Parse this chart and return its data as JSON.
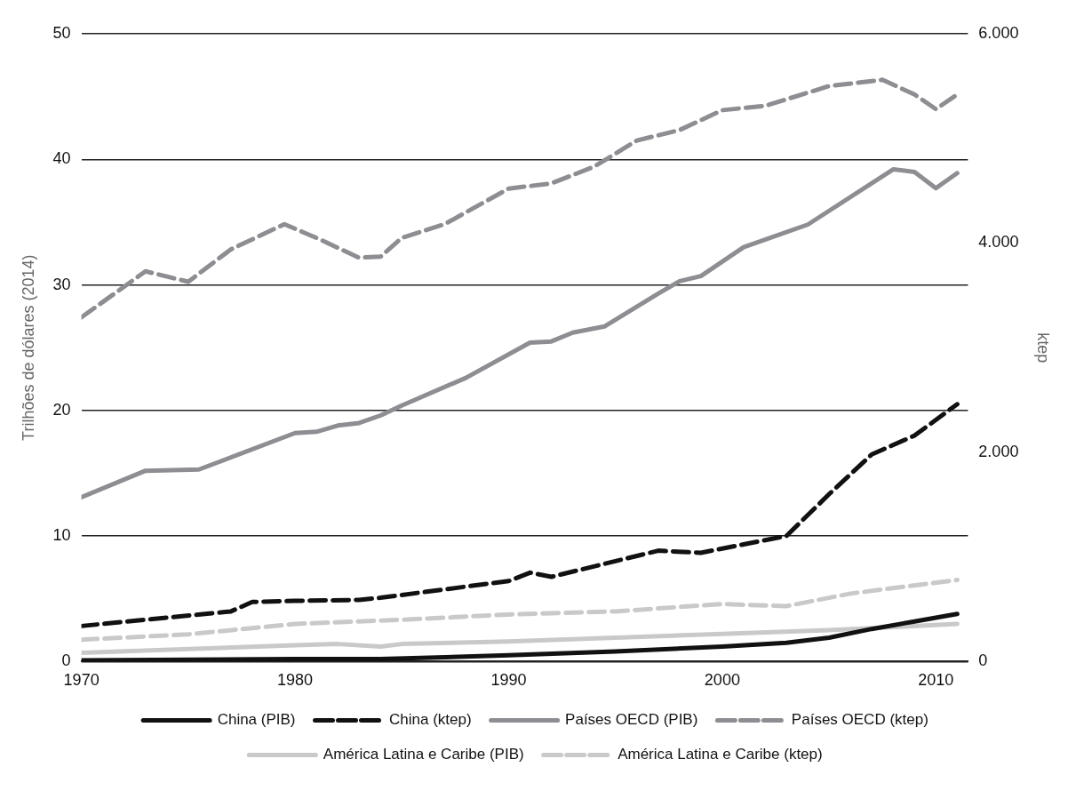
{
  "chart_data": {
    "type": "line",
    "ylabel": "Trilhões de dólares (2014)",
    "y2label": "ktep",
    "xlim": [
      1970,
      2011.5
    ],
    "xticks": [
      1970,
      1980,
      1990,
      2000,
      2010
    ],
    "ylim": [
      0,
      50
    ],
    "yticks": [
      0,
      10,
      20,
      30,
      40,
      50
    ],
    "y2lim": [
      0,
      6000
    ],
    "y2ticks": [
      {
        "value": 0,
        "label": "0"
      },
      {
        "value": 2000,
        "label": "2.000"
      },
      {
        "value": 4000,
        "label": "4.000"
      },
      {
        "value": 6000,
        "label": "6.000"
      }
    ],
    "grid": "y",
    "legend": "bottom",
    "marker": "none",
    "series": [
      {
        "name": "China (PIB)",
        "color": "#111111",
        "line_style": "solid",
        "x": [
          1970,
          1980,
          1984,
          1990,
          1995,
          2000,
          2003,
          2005,
          2007,
          2009,
          2011
        ],
        "values": [
          0.1,
          0.2,
          0.2,
          0.5,
          0.8,
          1.2,
          1.5,
          1.9,
          2.6,
          3.2,
          3.8
        ]
      },
      {
        "name": "China (ktep)",
        "color": "#111111",
        "line_style": "dashed",
        "axis": "y2",
        "x": [
          1970,
          1973,
          1976,
          1977,
          1978,
          1980,
          1983,
          1984,
          1987,
          1990,
          1991,
          1992,
          1995,
          1997,
          1999,
          2001,
          2003,
          2005,
          2007,
          2009,
          2011
        ],
        "values": [
          340,
          400,
          460,
          480,
          570,
          580,
          590,
          610,
          690,
          770,
          850,
          810,
          960,
          1060,
          1040,
          1120,
          1200,
          1600,
          1980,
          2160,
          2460
        ]
      },
      {
        "name": "Países OECD (PIB)",
        "color": "#8e8e92",
        "line_style": "solid",
        "x": [
          1970,
          1973,
          1975.5,
          1980,
          1981,
          1982,
          1983,
          1984,
          1985,
          1988,
          1991,
          1992,
          1993,
          1994.5,
          1997,
          1998,
          1999,
          2001,
          2004,
          2008,
          2009,
          2010,
          2011
        ],
        "values": [
          13.1,
          15.2,
          15.3,
          18.2,
          18.3,
          18.8,
          19.0,
          19.6,
          20.4,
          22.6,
          25.4,
          25.5,
          26.2,
          26.7,
          29.3,
          30.3,
          30.7,
          33.0,
          34.8,
          39.2,
          39.0,
          37.7,
          38.9
        ]
      },
      {
        "name": "Países OECD (ktep)",
        "color": "#8e8e92",
        "line_style": "dashed",
        "axis": "y2",
        "x": [
          1970,
          1973,
          1975,
          1977,
          1979.5,
          1981,
          1983,
          1984,
          1985,
          1987,
          1990,
          1992,
          1994,
          1996,
          1998,
          2000,
          2002,
          2005,
          2007.5,
          2009,
          2010,
          2011
        ],
        "values": [
          3290,
          3730,
          3630,
          3940,
          4180,
          4050,
          3860,
          3870,
          4050,
          4180,
          4520,
          4570,
          4730,
          4980,
          5080,
          5270,
          5310,
          5500,
          5560,
          5420,
          5280,
          5420
        ]
      },
      {
        "name": "América Latina e Caribe (PIB)",
        "color": "#c9c9c9",
        "line_style": "solid",
        "x": [
          1970,
          1980,
          1982,
          1984,
          1985,
          1990,
          2000,
          2005,
          2011
        ],
        "values": [
          0.7,
          1.3,
          1.4,
          1.2,
          1.4,
          1.6,
          2.2,
          2.5,
          3.0
        ]
      },
      {
        "name": "América Latina e Caribe (ktep)",
        "color": "#c9c9c9",
        "line_style": "dashed",
        "axis": "y2",
        "x": [
          1970,
          1975,
          1980,
          1985,
          1990,
          1995,
          2000,
          2003,
          2006,
          2011
        ],
        "values": [
          210,
          260,
          360,
          400,
          450,
          480,
          550,
          530,
          650,
          780
        ]
      }
    ]
  }
}
